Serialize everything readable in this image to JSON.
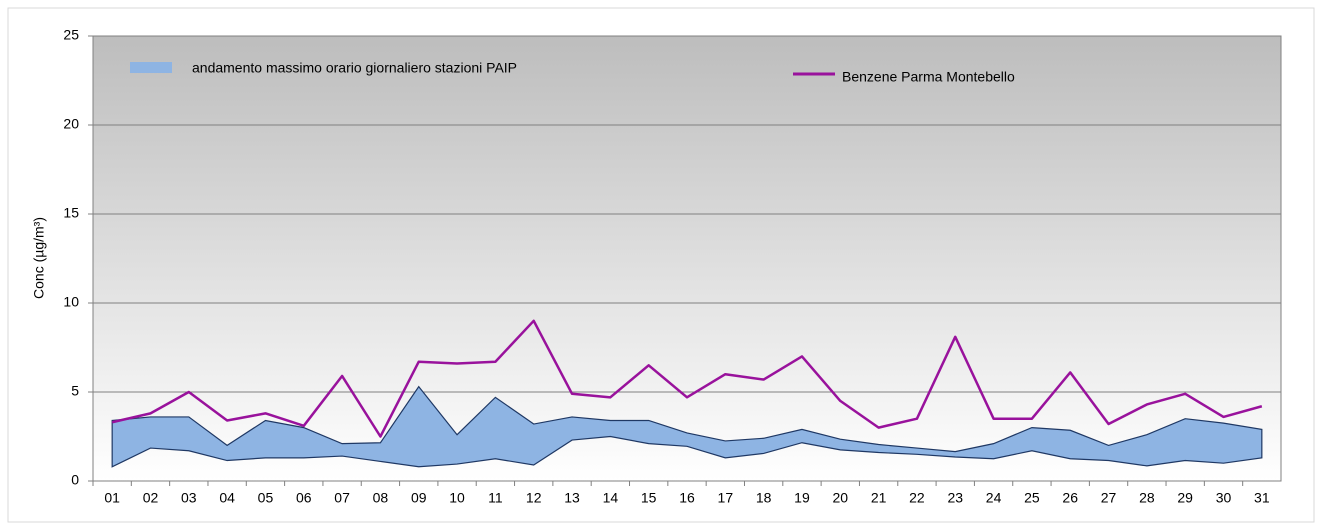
{
  "chart_data": {
    "type": "line",
    "y_label": "Conc (µg/m³)",
    "categories": [
      "01",
      "02",
      "03",
      "04",
      "05",
      "06",
      "07",
      "08",
      "09",
      "10",
      "11",
      "12",
      "13",
      "14",
      "15",
      "16",
      "17",
      "18",
      "19",
      "20",
      "21",
      "22",
      "23",
      "24",
      "25",
      "26",
      "27",
      "28",
      "29",
      "30",
      "31"
    ],
    "series": [
      {
        "name": "andamento massimo orario giornaliero stazioni PAIP",
        "type": "band",
        "color": "#8eb4e3",
        "upper": [
          3.4,
          3.6,
          3.6,
          2.0,
          3.4,
          3.0,
          2.1,
          2.15,
          5.3,
          2.6,
          4.7,
          3.2,
          3.6,
          3.4,
          3.4,
          2.7,
          2.25,
          2.4,
          2.9,
          2.35,
          2.05,
          1.85,
          1.65,
          2.1,
          3.0,
          2.85,
          2.0,
          2.6,
          3.5,
          3.25,
          2.9
        ],
        "lower": [
          0.8,
          1.85,
          1.7,
          1.15,
          1.3,
          1.3,
          1.4,
          1.1,
          0.8,
          0.95,
          1.25,
          0.9,
          2.3,
          2.5,
          2.1,
          1.95,
          1.3,
          1.55,
          2.15,
          1.75,
          1.6,
          1.5,
          1.35,
          1.25,
          1.7,
          1.25,
          1.15,
          0.85,
          1.15,
          1.0,
          1.3
        ]
      },
      {
        "name": "Benzene Parma Montebello",
        "type": "line",
        "color": "#99129c",
        "values": [
          3.3,
          3.8,
          5.0,
          3.4,
          3.8,
          3.1,
          5.9,
          2.5,
          6.7,
          6.6,
          6.7,
          9.0,
          4.9,
          4.7,
          6.5,
          4.7,
          6.0,
          5.7,
          7.0,
          4.5,
          3.0,
          3.5,
          8.1,
          3.5,
          3.5,
          6.1,
          3.2,
          4.3,
          4.9,
          3.6,
          4.2
        ]
      }
    ],
    "ylim": [
      0,
      25
    ],
    "yticks": [
      0,
      5,
      10,
      15,
      20,
      25
    ],
    "grid": true
  }
}
